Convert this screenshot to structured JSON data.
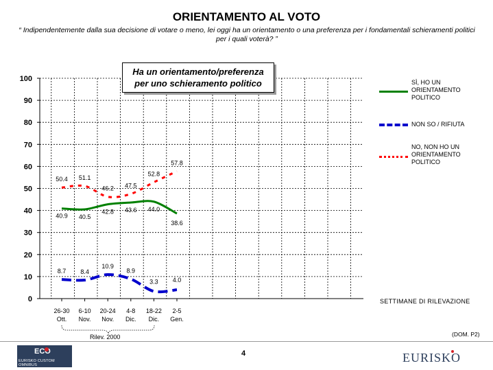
{
  "title": "ORIENTAMENTO AL VOTO",
  "subtitle": "“ Indipendentemente dalla sua decisione di votare o meno, lei oggi ha un orientamento o una preferenza per i fondamentali schieramenti politici per i quali voterà? ”",
  "callout": {
    "line1": "Ha un orientamento/preferenza",
    "line2": "per uno schieramento politico"
  },
  "legend": [
    {
      "label": "SÌ, HO UN ORIENTAMENTO POLITICO",
      "color": "#008000",
      "style": "solid"
    },
    {
      "label": "NON SO / RIFIUTA",
      "color": "#0000cc",
      "style": "dashed"
    },
    {
      "label": "NO, NON HO UN ORIENTAMENTO POLITICO",
      "color": "#ff0000",
      "style": "dotted"
    }
  ],
  "weeks_label": "SETTIMANE DI RILEVAZIONE",
  "source_code": "(DOM. P2)",
  "period_label": "Rilev. 2000",
  "page_number": "4",
  "logo_left": {
    "mark": "ECO",
    "text": "EURISKO CUSTOM OMNIBUS"
  },
  "logo_right": "EURISKO",
  "chart_data": {
    "type": "line",
    "categories": [
      {
        "line1": "26-30",
        "line2": "Ott."
      },
      {
        "line1": "6-10",
        "line2": "Nov."
      },
      {
        "line1": "20-24",
        "line2": "Nov."
      },
      {
        "line1": "4-8",
        "line2": "Dic."
      },
      {
        "line1": "18-22",
        "line2": "Dic."
      },
      {
        "line1": "2-5",
        "line2": "Gen."
      }
    ],
    "ylim": [
      0,
      100
    ],
    "yticks": [
      "0",
      "10",
      "20",
      "30",
      "40",
      "50",
      "60",
      "70",
      "80",
      "90",
      "100"
    ],
    "grid": true,
    "series": [
      {
        "name": "SÌ, HO UN ORIENTAMENTO POLITICO",
        "color": "#008000",
        "style": "solid",
        "values": [
          40.9,
          40.5,
          42.8,
          43.6,
          44.0,
          38.6
        ],
        "labels": [
          "40.9",
          "40.5",
          "42.8",
          "43.6",
          "44.0",
          "38.6"
        ]
      },
      {
        "name": "NON SO / RIFIUTA",
        "color": "#0000cc",
        "style": "dashed",
        "values": [
          8.7,
          8.4,
          10.9,
          8.9,
          3.3,
          4.0
        ],
        "labels": [
          "8.7",
          "8.4",
          "10.9",
          "8.9",
          "3.3",
          "4.0"
        ]
      },
      {
        "name": "NO, NON HO UN ORIENTAMENTO POLITICO",
        "color": "#ff0000",
        "style": "dotted",
        "values": [
          50.4,
          51.1,
          46.2,
          47.5,
          52.8,
          57.8
        ],
        "labels": [
          "50.4",
          "51.1",
          "46.2",
          "47.5",
          "52.8",
          "57.8"
        ]
      }
    ]
  }
}
